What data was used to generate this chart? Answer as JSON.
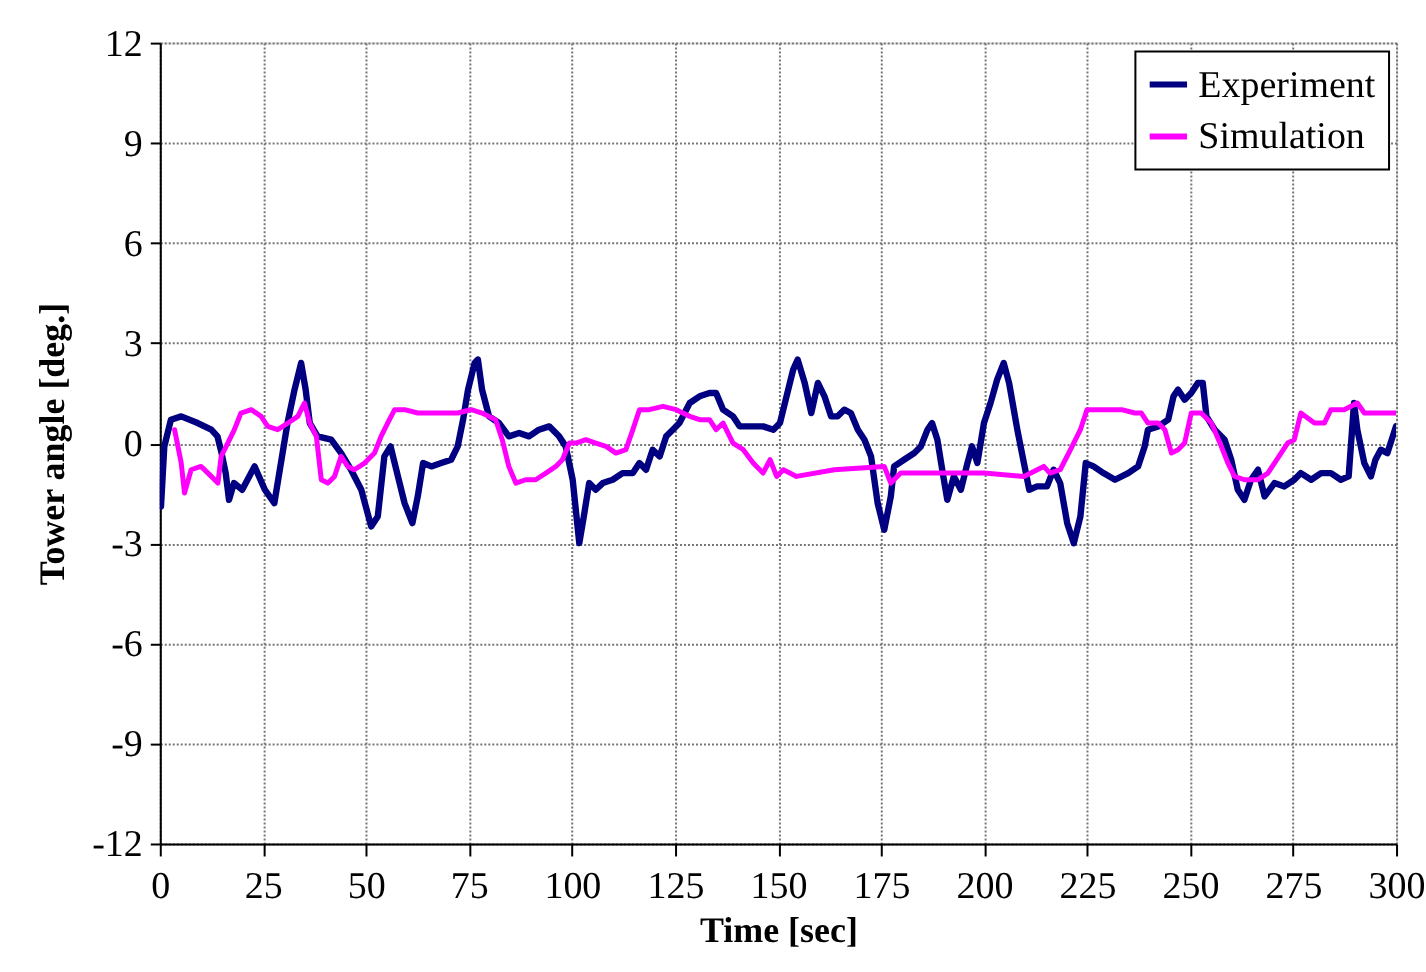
{
  "chart_data": {
    "type": "line",
    "xlabel": "Time [sec]",
    "ylabel": "Tower angle [deg.]",
    "xlim": [
      0,
      300
    ],
    "xticks": [
      0,
      25,
      50,
      75,
      100,
      125,
      150,
      175,
      200,
      225,
      250,
      275,
      300
    ],
    "ylim": [
      -12,
      12
    ],
    "yticks": [
      -12,
      -9,
      -6,
      -3,
      0,
      3,
      6,
      9,
      12
    ],
    "grid": true,
    "legend": "top right",
    "line_style": "solid",
    "series": [
      {
        "name": "Experiment",
        "color": "#000080",
        "x": [
          0.3,
          1.1,
          2.7,
          5.2,
          9.2,
          12.5,
          14,
          15,
          16,
          16.8,
          18,
          20,
          23,
          25.5,
          27.8,
          29.4,
          31,
          32.7,
          34.3,
          35.4,
          36.4,
          38.3,
          41.6,
          44,
          46.4,
          48.9,
          51.3,
          52.9,
          54.5,
          56,
          57.8,
          59.4,
          61.3,
          62.6,
          63.9,
          65.9,
          68.3,
          70.7,
          72.3,
          73.6,
          74.8,
          76.4,
          77.2,
          78.2,
          79.9,
          82.3,
          84.7,
          87.2,
          89.6,
          92,
          94.5,
          96.9,
          98.5,
          100.2,
          101.8,
          102.9,
          104.2,
          105.8,
          107.5,
          109.9,
          112.3,
          114.8,
          116.4,
          118,
          119.6,
          121.3,
          122.9,
          124.5,
          126.1,
          128.6,
          131,
          133.4,
          135,
          136.7,
          139.1,
          140.7,
          143.2,
          146.4,
          148.9,
          150.5,
          152.1,
          153.7,
          154.8,
          156.5,
          158.1,
          159.7,
          161.3,
          162.9,
          164.5,
          166.1,
          167.7,
          169.4,
          171,
          172.6,
          174.2,
          175.8,
          177.4,
          178.2,
          180.6,
          183.1,
          184.7,
          186.3,
          187.4,
          188.7,
          190,
          191.1,
          192.7,
          194.4,
          196,
          197.1,
          198.4,
          200,
          201.6,
          203.2,
          204.8,
          206.1,
          208.1,
          209.7,
          211,
          212.9,
          215.3,
          216.9,
          218.5,
          220.2,
          221.8,
          223.4,
          224.7,
          226.6,
          229,
          231.8,
          235,
          237.4,
          239,
          239.8,
          242.3,
          244.7,
          246,
          247.1,
          248.7,
          250.3,
          251.9,
          253.1,
          254,
          256,
          258.4,
          260,
          261.6,
          263.2,
          264.8,
          266.5,
          268.1,
          270.5,
          272.9,
          275.3,
          276.9,
          279.4,
          281.8,
          284.2,
          286.6,
          288.5,
          289.8,
          290.6,
          292.3,
          293.9,
          295,
          296.3,
          297.9,
          299.2,
          300
        ],
        "values": [
          -1.9,
          -0.1,
          0.7,
          0.8,
          0.6,
          0.4,
          0.2,
          -0.3,
          -0.9,
          -1.7,
          -1.2,
          -1.4,
          -0.7,
          -1.4,
          -1.8,
          -0.6,
          0.6,
          1.6,
          2.4,
          1.6,
          0.6,
          0.2,
          0.1,
          -0.3,
          -0.8,
          -1.4,
          -2.5,
          -2.2,
          -0.4,
          -0.1,
          -1.0,
          -1.8,
          -2.4,
          -1.6,
          -0.6,
          -0.7,
          -0.6,
          -0.5,
          -0.1,
          0.7,
          1.6,
          2.4,
          2.5,
          1.6,
          0.8,
          0.6,
          0.2,
          0.3,
          0.2,
          0.4,
          0.5,
          0.2,
          -0.1,
          -1.1,
          -3.0,
          -2.2,
          -1.2,
          -1.4,
          -1.2,
          -1.1,
          -0.9,
          -0.9,
          -0.6,
          -0.8,
          -0.2,
          -0.4,
          0.2,
          0.4,
          0.6,
          1.2,
          1.4,
          1.5,
          1.5,
          1.0,
          0.8,
          0.5,
          0.5,
          0.5,
          0.4,
          0.6,
          1.4,
          2.2,
          2.5,
          1.8,
          0.9,
          1.8,
          1.4,
          0.8,
          0.8,
          1.0,
          0.9,
          0.4,
          0.1,
          -0.4,
          -1.8,
          -2.6,
          -1.6,
          -0.7,
          -0.5,
          -0.3,
          -0.1,
          0.4,
          0.6,
          0.1,
          -0.9,
          -1.7,
          -1.0,
          -1.4,
          -0.6,
          -0.1,
          -0.6,
          0.6,
          1.2,
          1.9,
          2.4,
          1.8,
          0.4,
          -0.6,
          -1.4,
          -1.3,
          -1.3,
          -0.8,
          -1.2,
          -2.4,
          -3.0,
          -2.2,
          -0.6,
          -0.7,
          -0.9,
          -1.1,
          -0.9,
          -0.7,
          -0.1,
          0.4,
          0.5,
          0.7,
          1.4,
          1.6,
          1.3,
          1.5,
          1.8,
          1.8,
          0.8,
          0.4,
          0.1,
          -0.5,
          -1.4,
          -1.7,
          -1.1,
          -0.8,
          -1.6,
          -1.2,
          -1.3,
          -1.1,
          -0.9,
          -1.1,
          -0.9,
          -0.9,
          -1.1,
          -1.0,
          1.2,
          0.4,
          -0.6,
          -1.0,
          -0.5,
          -0.2,
          -0.3,
          0.2,
          0.5
        ]
      },
      {
        "name": "Simulation",
        "color": "#ff00ff",
        "x": [
          3.6,
          5.2,
          6,
          7.6,
          10,
          12.5,
          14.1,
          14.9,
          16.5,
          18.1,
          19.7,
          22.2,
          24.6,
          26.2,
          28.6,
          31.1,
          33.5,
          35.1,
          36.4,
          38,
          39.2,
          40.8,
          42.4,
          44,
          45.6,
          47.2,
          49.7,
          52.1,
          53.7,
          55.3,
          57,
          59.4,
          62.6,
          65.9,
          69.1,
          72.3,
          75.6,
          78.2,
          81.5,
          83.1,
          84.7,
          86.4,
          88.8,
          91.2,
          93.7,
          96.1,
          97.7,
          99.4,
          101,
          103.4,
          105.8,
          108.3,
          110.7,
          113.1,
          114.8,
          116.4,
          118.8,
          122.1,
          125.3,
          128.6,
          131,
          133.4,
          135,
          136.7,
          139.1,
          141.6,
          144,
          146.4,
          148.1,
          149.7,
          151.3,
          152.9,
          154.5,
          163.7,
          175.8,
          177.4,
          179.8,
          190,
          200,
          209.7,
          214.5,
          216,
          218.5,
          221,
          223.4,
          225,
          229,
          233.4,
          236.6,
          238.2,
          239.8,
          242.3,
          243.9,
          245.5,
          247.1,
          248.7,
          250.3,
          252.7,
          255.2,
          257.6,
          259.2,
          260.8,
          263.2,
          266.5,
          268.9,
          270.5,
          272.1,
          273.7,
          275.3,
          276.9,
          280.2,
          282.6,
          284.2,
          287.4,
          290.6,
          292.3,
          296.3,
          300
        ],
        "values": [
          0.4,
          -0.6,
          -1.5,
          -0.8,
          -0.7,
          -1.0,
          -1.2,
          -0.4,
          0.0,
          0.4,
          0.9,
          1.0,
          0.8,
          0.5,
          0.4,
          0.6,
          0.8,
          1.2,
          0.6,
          0.2,
          -1.1,
          -1.2,
          -1.0,
          -0.4,
          -0.7,
          -0.8,
          -0.6,
          -0.3,
          0.2,
          0.6,
          1.0,
          1.0,
          0.9,
          0.9,
          0.9,
          0.9,
          1.0,
          0.9,
          0.7,
          0.1,
          -0.7,
          -1.2,
          -1.1,
          -1.1,
          -0.9,
          -0.7,
          -0.5,
          0.0,
          0.0,
          0.1,
          0.0,
          -0.1,
          -0.3,
          -0.2,
          0.4,
          1.0,
          1.0,
          1.1,
          1.0,
          0.8,
          0.7,
          0.7,
          0.4,
          0.6,
          0.0,
          -0.2,
          -0.6,
          -0.9,
          -0.5,
          -1.0,
          -0.8,
          -0.9,
          -1.0,
          -0.8,
          -0.7,
          -1.2,
          -0.9,
          -0.9,
          -0.9,
          -1.0,
          -0.7,
          -0.9,
          -0.8,
          -0.2,
          0.4,
          1.0,
          1.0,
          1.0,
          0.9,
          0.9,
          0.6,
          0.6,
          0.4,
          -0.3,
          -0.2,
          0.0,
          0.9,
          0.9,
          0.6,
          -0.1,
          -0.6,
          -1.0,
          -1.1,
          -1.1,
          -0.9,
          -0.6,
          -0.3,
          0.0,
          0.1,
          0.9,
          0.6,
          0.6,
          1.0,
          1.0,
          1.2,
          0.9,
          0.9,
          0.9
        ]
      }
    ]
  }
}
